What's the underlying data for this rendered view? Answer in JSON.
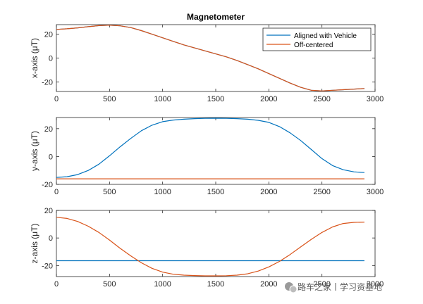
{
  "chart_data": [
    {
      "type": "line",
      "title": "Magnetometer",
      "ylabel": "x-axis (μT)",
      "xlim": [
        0,
        3000
      ],
      "ylim": [
        -28,
        28
      ],
      "xticks": [
        0,
        500,
        1000,
        1500,
        2000,
        2500,
        3000
      ],
      "yticks": [
        -20,
        0,
        20
      ],
      "legend": "top-right",
      "series": [
        {
          "name": "Aligned with Vehicle",
          "color": "#0072bd",
          "x": [
            0,
            100,
            200,
            300,
            400,
            500,
            600,
            700,
            800,
            900,
            1000,
            1100,
            1200,
            1300,
            1400,
            1500,
            1600,
            1700,
            1800,
            1900,
            2000,
            2100,
            2200,
            2300,
            2400,
            2500,
            2600,
            2700,
            2800,
            2900
          ],
          "y": [
            24,
            24.5,
            25.3,
            26.3,
            27.2,
            27.5,
            27,
            25.5,
            23,
            20,
            17,
            14,
            11,
            8.5,
            6,
            3.5,
            1,
            -2,
            -5.5,
            -9,
            -13,
            -17,
            -21,
            -24.5,
            -27,
            -27.5,
            -27,
            -26.5,
            -26,
            -25.5
          ]
        },
        {
          "name": "Off-centered",
          "color": "#d95319",
          "x": [
            0,
            100,
            200,
            300,
            400,
            500,
            600,
            700,
            800,
            900,
            1000,
            1100,
            1200,
            1300,
            1400,
            1500,
            1600,
            1700,
            1800,
            1900,
            2000,
            2100,
            2200,
            2300,
            2400,
            2500,
            2600,
            2700,
            2800,
            2900
          ],
          "y": [
            24,
            24.5,
            25.3,
            26.3,
            27.2,
            27.5,
            27,
            25.5,
            23,
            20,
            17,
            14,
            11,
            8.5,
            6,
            3.5,
            1,
            -2,
            -5.5,
            -9,
            -13,
            -17,
            -21,
            -24.5,
            -27,
            -27.5,
            -27,
            -26.5,
            -26,
            -25.5
          ]
        }
      ]
    },
    {
      "type": "line",
      "ylabel": "y-axis (μT)",
      "xlim": [
        0,
        3000
      ],
      "ylim": [
        -20,
        28
      ],
      "xticks": [
        0,
        500,
        1000,
        1500,
        2000,
        2500,
        3000
      ],
      "yticks": [
        -20,
        0,
        20
      ],
      "series": [
        {
          "name": "Aligned with Vehicle",
          "color": "#0072bd",
          "x": [
            0,
            100,
            200,
            300,
            400,
            500,
            600,
            700,
            800,
            900,
            1000,
            1100,
            1200,
            1300,
            1400,
            1500,
            1600,
            1700,
            1800,
            1900,
            2000,
            2100,
            2200,
            2300,
            2400,
            2500,
            2600,
            2700,
            2800,
            2900
          ],
          "y": [
            -15,
            -14.5,
            -13,
            -10,
            -5.5,
            0.5,
            7,
            13,
            18.5,
            22.5,
            25,
            26.2,
            26.8,
            27.2,
            27.4,
            27.5,
            27.4,
            27.2,
            26.8,
            26,
            24.5,
            21.5,
            17,
            11.5,
            5,
            -1.5,
            -6.5,
            -9.5,
            -11,
            -11.5
          ]
        },
        {
          "name": "Off-centered",
          "color": "#d95319",
          "x": [
            0,
            2900
          ],
          "y": [
            -16,
            -16
          ]
        }
      ]
    },
    {
      "type": "line",
      "ylabel": "z-axis (μT)",
      "xlim": [
        0,
        3000
      ],
      "ylim": [
        -28,
        20
      ],
      "xticks": [
        0,
        500,
        1000,
        1500,
        2000,
        2500,
        3000
      ],
      "yticks": [
        -20,
        0,
        20
      ],
      "series": [
        {
          "name": "Aligned with Vehicle",
          "color": "#0072bd",
          "x": [
            0,
            2900
          ],
          "y": [
            -16.5,
            -16.5
          ]
        },
        {
          "name": "Off-centered",
          "color": "#d95319",
          "x": [
            0,
            100,
            200,
            300,
            400,
            500,
            600,
            700,
            800,
            900,
            1000,
            1100,
            1200,
            1300,
            1400,
            1500,
            1600,
            1700,
            1800,
            1900,
            2000,
            2100,
            2200,
            2300,
            2400,
            2500,
            2600,
            2700,
            2800,
            2900
          ],
          "y": [
            15,
            14.2,
            12,
            8.5,
            4,
            -1.5,
            -7.5,
            -13,
            -18,
            -22,
            -24.8,
            -26.3,
            -27,
            -27.3,
            -27.5,
            -27.5,
            -27.4,
            -27,
            -26,
            -24,
            -21,
            -17,
            -12,
            -6.5,
            -1,
            4,
            8,
            10.5,
            11.3,
            11.5
          ]
        }
      ]
    }
  ],
  "watermark": {
    "text": "路车之家丨学习资基地",
    "icon": "wechat-icon"
  }
}
